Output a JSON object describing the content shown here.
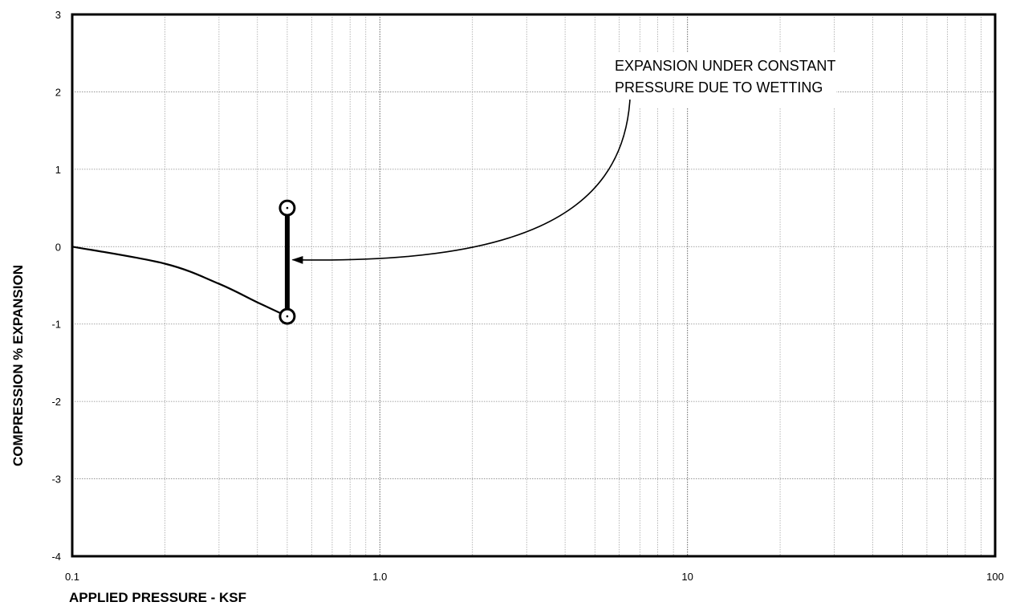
{
  "chart_data": {
    "type": "line",
    "title": "",
    "xlabel": "APPLIED PRESSURE - KSF",
    "ylabel": "COMPRESSION % EXPANSION",
    "xscale": "log",
    "xlim": [
      0.1,
      100
    ],
    "ylim": [
      -4,
      3
    ],
    "x_tick_labels": [
      "0.1",
      "1.0",
      "10",
      "100"
    ],
    "y_ticks": [
      3,
      2,
      1,
      0,
      -1,
      -2,
      -3,
      -4
    ],
    "grid": true,
    "series": [
      {
        "kind": "loading-curve",
        "x": [
          0.1,
          0.2,
          0.3,
          0.4,
          0.5
        ],
        "y": [
          0,
          -0.22,
          -0.48,
          -0.72,
          -0.9
        ]
      },
      {
        "kind": "wetting-expansion",
        "x": [
          0.5,
          0.5
        ],
        "y": [
          -0.9,
          0.5
        ]
      }
    ],
    "annotations": [
      {
        "lines": [
          "EXPANSION UNDER CONSTANT",
          "PRESSURE DUE TO WETTING"
        ],
        "arrow_from": [
          6.5,
          1.9
        ],
        "arrow_to": [
          0.52,
          -0.17
        ]
      }
    ]
  }
}
